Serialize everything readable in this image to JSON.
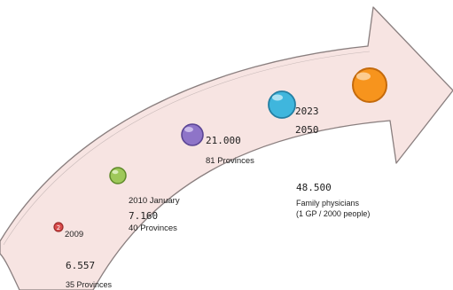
{
  "colors": {
    "arrow_fill": "#f7e4e2",
    "arrow_stroke": "#8a7f7f",
    "background": "#ffffff",
    "text": "#1e1e1e"
  },
  "milestones": [
    {
      "id": "m2009",
      "year": "2009",
      "value": "6.557",
      "provinces_count": "35",
      "provinces_word": "Provinces",
      "color": "#d84b4b",
      "ring_color": "#9b2a2a"
    },
    {
      "id": "m2010",
      "year_label": "2010 January",
      "value": "7.160",
      "provinces_count": "40",
      "provinces_word": "Provinces",
      "color": "#9ec85a",
      "ring_color": "#5f8a2a"
    },
    {
      "id": "m2013",
      "value": "21.000",
      "provinces_count": "81",
      "provinces_word": "Provinces",
      "color": "#8e74c8",
      "ring_color": "#5b4594"
    },
    {
      "id": "m2023",
      "year": "2023",
      "color": "#3fb6dd",
      "ring_color": "#247fa3"
    },
    {
      "id": "m2050",
      "year": "2050",
      "value": "48.500",
      "description_line1": "Family physicians",
      "description_line2": "(1 GP / 2000 people)",
      "color": "#f7941d",
      "ring_color": "#c46a0c"
    }
  ]
}
